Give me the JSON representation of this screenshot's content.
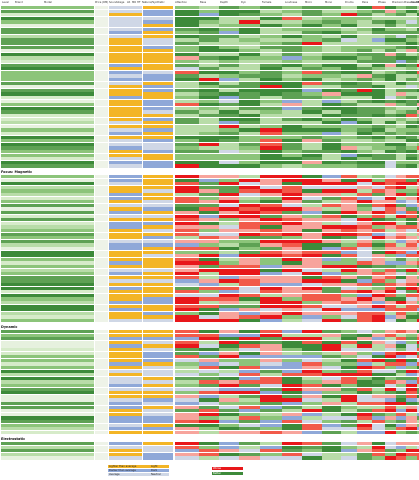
{
  "sheet": {
    "headers": [
      "Level",
      "Brand",
      "Model",
      "Price (RM)",
      "Soundstage",
      "LR",
      "MR",
      "HF",
      "Natural/Synthetic",
      "Attention",
      "Bass",
      "Depth",
      "Dyn",
      "Female",
      "Loudness",
      "Micro",
      "Mono",
      "Drums",
      "Pace",
      "Phase",
      "Precision",
      "Presence",
      "Resolution",
      "Rock",
      "Stereo",
      "Treble",
      "Vocal"
    ],
    "sections": [
      {
        "title": "Focus: Magnetic"
      },
      {
        "title": "Dynamic"
      },
      {
        "title": "Electrostatic"
      }
    ],
    "legend": [
      {
        "label": "Lighter than average",
        "value": "Light",
        "color": "#f3b526"
      },
      {
        "label": "Darker than average",
        "value": "Dark",
        "color": "#8fa8d8"
      },
      {
        "label": "Average",
        "value": "Neutral",
        "color": "#cfd7e6"
      }
    ],
    "legend2": [
      {
        "label": "Worse",
        "color": "#e8171a"
      },
      {
        "label": "Better",
        "color": "#3d8a3a"
      }
    ]
  }
}
